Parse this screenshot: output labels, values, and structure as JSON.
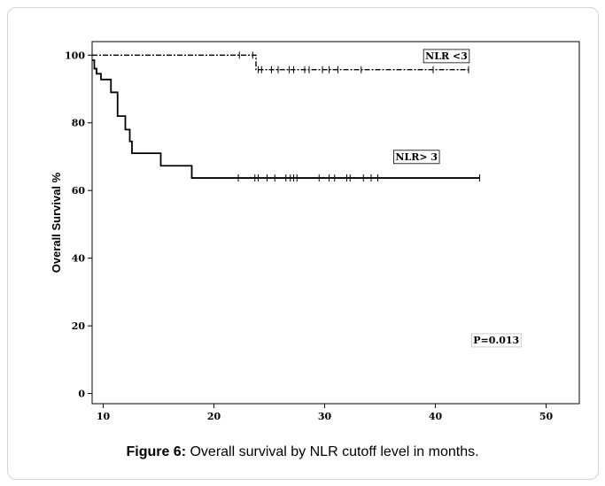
{
  "chart_data": {
    "type": "line",
    "step": true,
    "xlabel": "",
    "ylabel": "Overall Survival %",
    "xlim": [
      9,
      53
    ],
    "ylim": [
      -3,
      104
    ],
    "xticks": [
      10,
      20,
      30,
      40,
      50
    ],
    "yticks": [
      0,
      20,
      40,
      60,
      80,
      100
    ],
    "grid": false,
    "series": [
      {
        "name": "NLR <3",
        "dash": "dash-dot",
        "x": [
          9,
          23.8,
          23.8,
          43
        ],
        "y": [
          100,
          100,
          95.7,
          95.7
        ],
        "censored": [
          22.3,
          23.5,
          24,
          24.3,
          25.2,
          25.8,
          26.8,
          27.2,
          28.2,
          28.6,
          29.8,
          30.4,
          31.2,
          33.3,
          39.8,
          43
        ]
      },
      {
        "name": "NLR> 3",
        "dash": "solid",
        "x": [
          9,
          9.2,
          9.2,
          9.4,
          9.4,
          9.8,
          9.8,
          10.7,
          10.7,
          11.3,
          11.3,
          12,
          12,
          12.4,
          12.4,
          12.6,
          12.6,
          15.2,
          15.2,
          18,
          18,
          44
        ],
        "y": [
          98.5,
          98.5,
          96,
          96,
          94.5,
          94.5,
          92.8,
          92.8,
          89,
          89,
          82,
          82,
          78,
          78,
          74.5,
          74.5,
          71,
          71,
          67.3,
          67.3,
          63.7,
          63.7
        ],
        "censored": [
          22.2,
          23.7,
          24,
          24.8,
          25.5,
          26.5,
          26.9,
          27.2,
          27.5,
          29.5,
          30.4,
          30.9,
          32,
          32.3,
          33.5,
          34.2,
          34.8,
          44
        ]
      }
    ],
    "annotations": [
      "P=0.013"
    ],
    "legend": "inline labels near curves (top-right)"
  },
  "caption": {
    "label": "Figure 6:",
    "text": " Overall survival by NLR cutoff level in months."
  }
}
